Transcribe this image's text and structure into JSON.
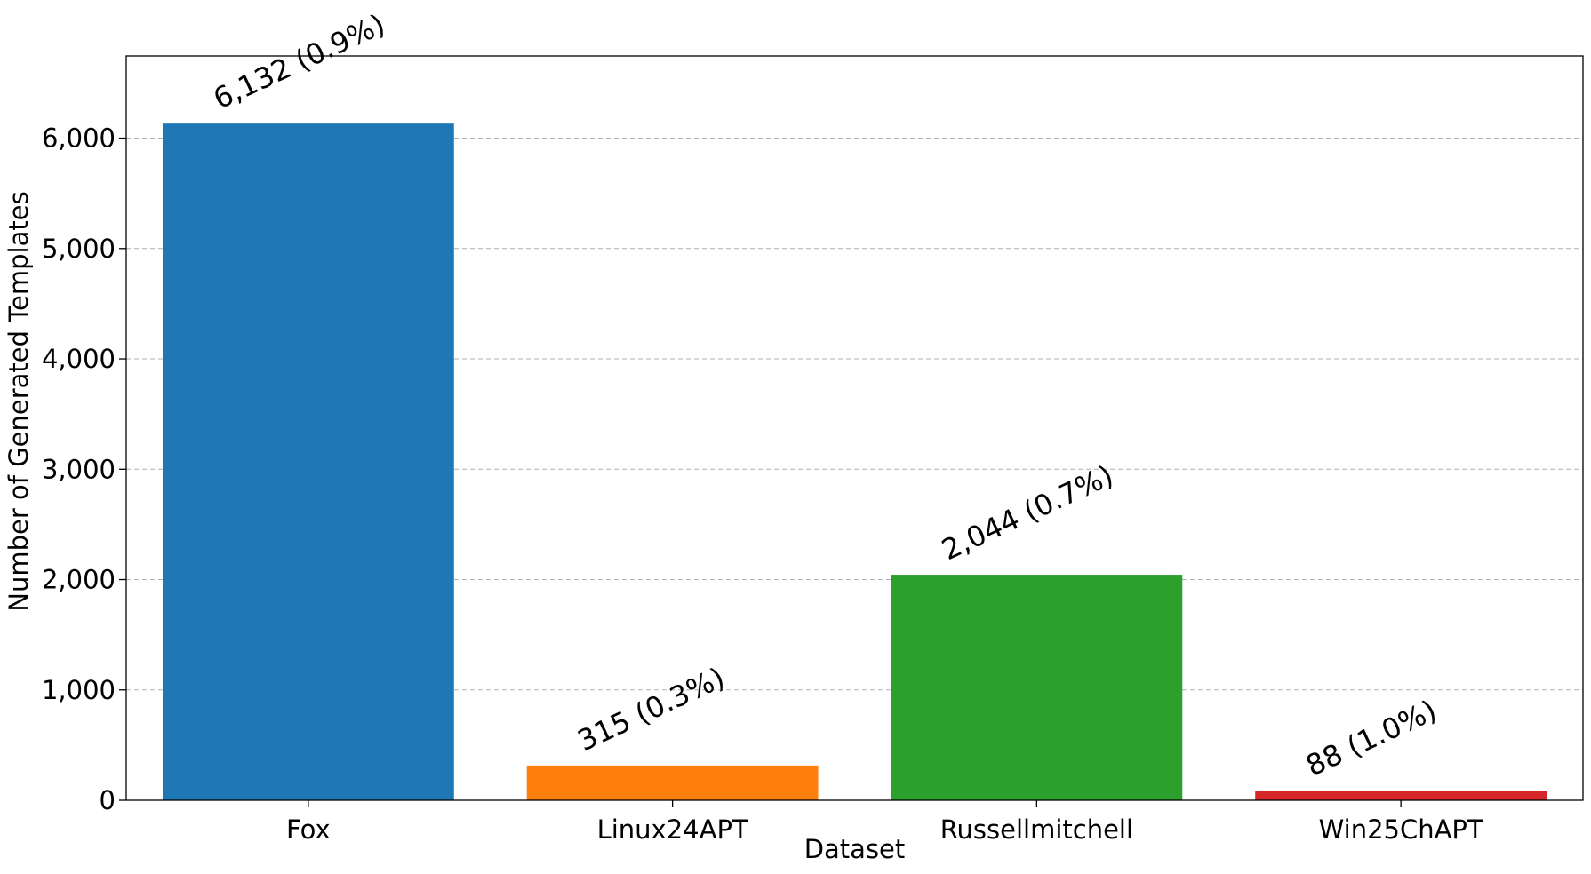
{
  "chart_data": {
    "type": "bar",
    "title": "",
    "xlabel": "Dataset",
    "ylabel": "Number of Generated Templates",
    "categories": [
      "Fox",
      "Linux24APT",
      "Russellmitchell",
      "Win25ChAPT"
    ],
    "values": [
      6132,
      315,
      2044,
      88
    ],
    "data_labels": [
      "6,132 (0.9%)",
      "315 (0.3%)",
      "2,044 (0.7%)",
      "88 (1.0%)"
    ],
    "colors": [
      "#1f77b4",
      "#ff7f0e",
      "#2ca02c",
      "#d62728"
    ],
    "ylim": [
      0,
      6745
    ],
    "yticks": [
      0,
      1000,
      2000,
      3000,
      4000,
      5000,
      6000
    ],
    "ytick_labels": [
      "0",
      "1,000",
      "2,000",
      "3,000",
      "4,000",
      "5,000",
      "6,000"
    ],
    "grid": "y-axis dashed",
    "legend": "none"
  }
}
